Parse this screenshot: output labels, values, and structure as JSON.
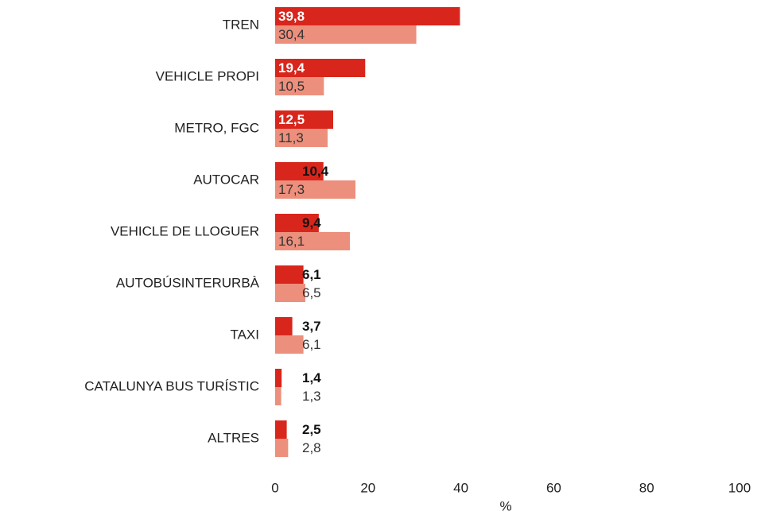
{
  "chart_data": {
    "type": "bar",
    "orientation": "horizontal",
    "x_label": "%",
    "categories": [
      "TREN",
      "VEHICLE PROPI",
      "METRO, FGC",
      "AUTOCAR",
      "VEHICLE DE LLOGUER",
      "AUTOBÚSINTERURBÀ",
      "TAXI",
      "CATALUNYA BUS TURÍSTIC",
      "ALTRES"
    ],
    "series": [
      {
        "color": "#d9261c",
        "values": [
          39.8,
          19.4,
          12.5,
          10.4,
          9.4,
          6.1,
          3.7,
          1.4,
          2.5
        ],
        "value_labels": [
          "39,8",
          "19,4",
          "12,5",
          "10,4",
          "9,4",
          "6,1",
          "3,7",
          "1,4",
          "2,5"
        ]
      },
      {
        "color": "#ec8f7c",
        "values": [
          30.4,
          10.5,
          11.3,
          17.3,
          16.1,
          6.5,
          6.1,
          1.3,
          2.8
        ],
        "value_labels": [
          "30,4",
          "10,5",
          "11,3",
          "17,3",
          "16,1",
          "6,5",
          "6,1",
          "1,3",
          "2,8"
        ]
      }
    ],
    "xlim": [
      0,
      100
    ],
    "xticks": [
      0,
      20,
      40,
      60,
      80,
      100
    ],
    "grid": false
  }
}
